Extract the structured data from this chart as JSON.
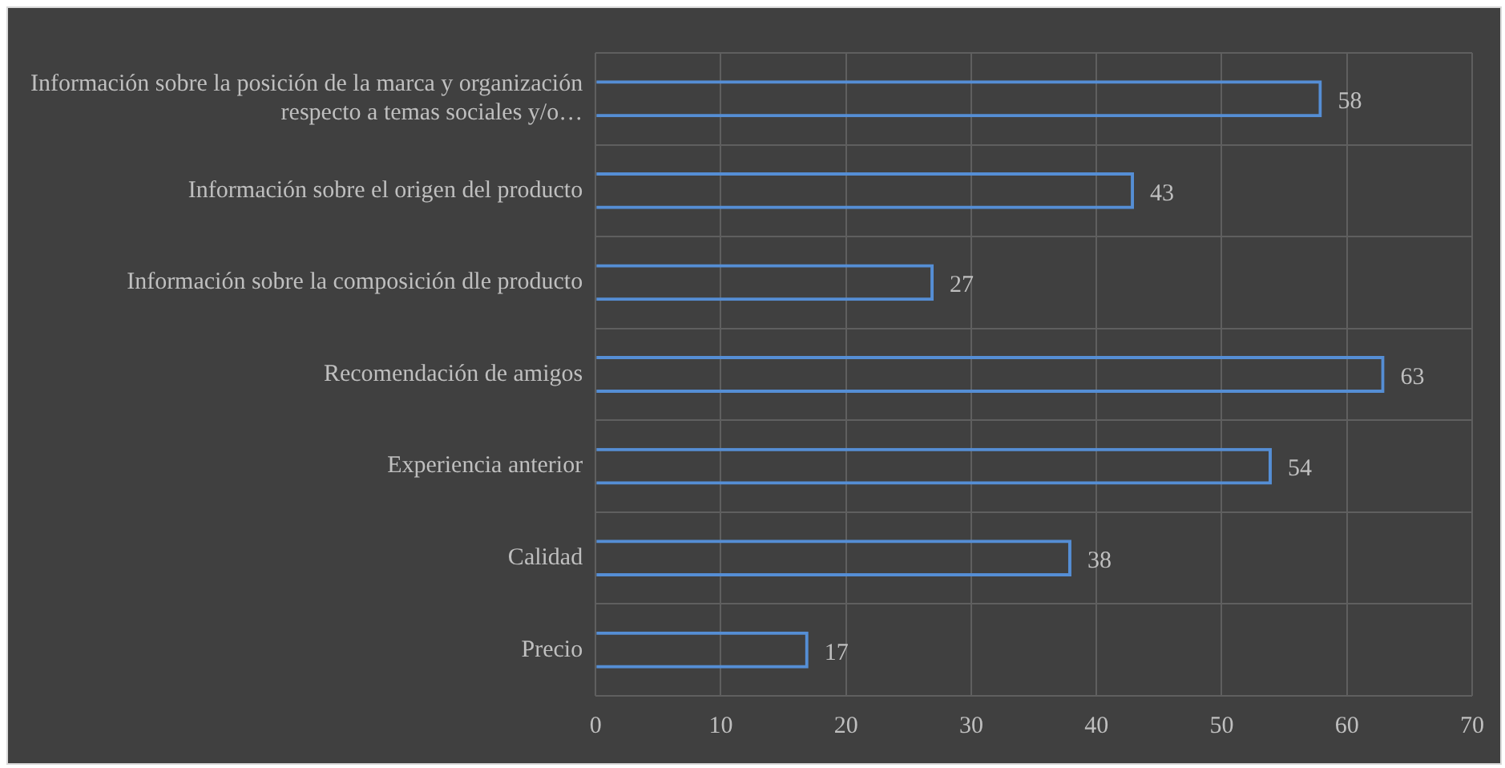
{
  "chart_data": {
    "type": "bar",
    "orientation": "horizontal",
    "categories": [
      "Información sobre la posición de la marca y organización respecto a temas sociales y/o…",
      "Información sobre el origen del producto",
      "Información sobre la composición dle producto",
      "Recomendación de amigos",
      "Experiencia anterior",
      "Calidad",
      "Precio"
    ],
    "values": [
      58,
      43,
      27,
      63,
      54,
      38,
      17
    ],
    "color": "#558ed5",
    "xlim": [
      0,
      70
    ],
    "xticks": [
      0,
      10,
      20,
      30,
      40,
      50,
      60,
      70
    ],
    "grid": true,
    "data_labels": true
  }
}
